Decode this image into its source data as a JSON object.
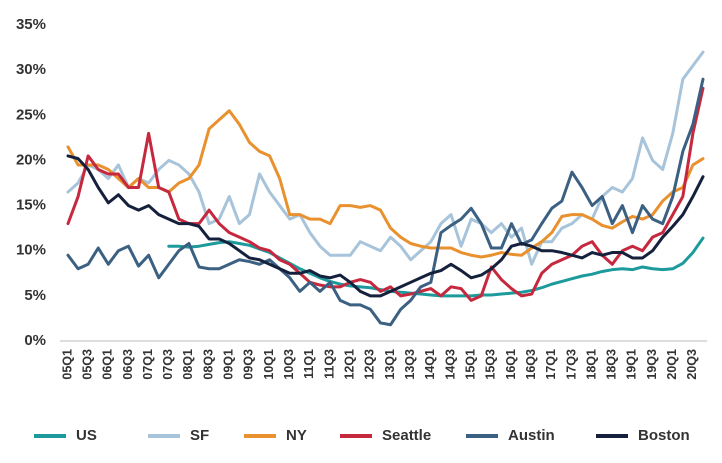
{
  "chart_data": {
    "type": "line",
    "categories": [
      "05Q1",
      null,
      "05Q3",
      null,
      "06Q1",
      null,
      "06Q3",
      null,
      "07Q1",
      null,
      "07Q3",
      null,
      "08Q1",
      null,
      "08Q3",
      null,
      "09Q1",
      null,
      "09Q3",
      null,
      "10Q1",
      null,
      "10Q3",
      null,
      "11Q1",
      null,
      "11Q3",
      null,
      "12Q1",
      null,
      "12Q3",
      null,
      "13Q1",
      null,
      "13Q3",
      null,
      "14Q1",
      null,
      "14Q3",
      null,
      "15Q1",
      null,
      "15Q3",
      null,
      "16Q1",
      null,
      "16Q3",
      null,
      "17Q1",
      null,
      "17Q3",
      null,
      "18Q1",
      null,
      "18Q3",
      null,
      "19Q1",
      null,
      "19Q3",
      null,
      "20Q1",
      null,
      "20Q3",
      null
    ],
    "ylim": [
      0,
      35
    ],
    "yticks": [
      {
        "value": 0,
        "label": "0%"
      },
      {
        "value": 5,
        "label": "5%"
      },
      {
        "value": 10,
        "label": "10%"
      },
      {
        "value": 15,
        "label": "15%"
      },
      {
        "value": 20,
        "label": "20%"
      },
      {
        "value": 25,
        "label": "25%"
      },
      {
        "value": 30,
        "label": "30%"
      },
      {
        "value": 35,
        "label": "35%"
      }
    ],
    "grid": false,
    "legend": "bottom",
    "series": [
      {
        "name": "US",
        "color": "#1c9a9c",
        "values": [
          null,
          null,
          null,
          null,
          null,
          null,
          null,
          null,
          null,
          null,
          10.5,
          10.5,
          10.4,
          10.5,
          10.7,
          10.9,
          11,
          10.8,
          10.6,
          10.2,
          9.8,
          9.2,
          8.6,
          8,
          7.5,
          7,
          6.6,
          6.3,
          6.1,
          6,
          5.9,
          5.7,
          5.5,
          5.4,
          5.3,
          5.2,
          5.1,
          5,
          5,
          5,
          5,
          5.1,
          5.1,
          5.2,
          5.3,
          5.4,
          5.6,
          5.9,
          6.3,
          6.6,
          6.9,
          7.2,
          7.4,
          7.7,
          7.9,
          8,
          7.9,
          8.2,
          8,
          7.9,
          8,
          8.6,
          9.8,
          11.4
        ]
      },
      {
        "name": "SF",
        "color": "#a8c4da",
        "values": [
          16.5,
          17.5,
          19.5,
          19,
          18,
          19.5,
          17,
          18,
          17.5,
          19,
          20,
          19.5,
          18.5,
          16.5,
          13,
          13.5,
          16,
          13,
          14,
          18.5,
          16.5,
          15,
          13.5,
          14,
          12,
          10.5,
          9.5,
          9.5,
          9.5,
          11,
          10.5,
          10,
          11.5,
          10.5,
          9,
          10,
          11,
          13,
          14,
          10.5,
          13.5,
          13,
          12,
          13,
          11.5,
          12.5,
          8.5,
          11,
          11,
          12.5,
          13,
          14,
          13.5,
          16,
          17,
          16.5,
          18,
          22.5,
          20,
          19,
          23,
          29,
          30.5,
          32
        ]
      },
      {
        "name": "NY",
        "color": "#e8912e",
        "values": [
          21.5,
          19.5,
          19.5,
          19.5,
          19,
          18,
          17,
          18,
          17,
          17,
          16.5,
          17.5,
          18,
          19.5,
          23.5,
          24.5,
          25.5,
          24,
          22,
          21,
          20.5,
          18,
          14,
          14,
          13.5,
          13.5,
          13,
          15,
          15,
          14.8,
          15,
          14.5,
          12.5,
          11.5,
          10.8,
          10.5,
          10.3,
          10.3,
          10.3,
          9.8,
          9.5,
          9.3,
          9.5,
          9.8,
          9.6,
          9.5,
          10.3,
          11,
          12,
          13.8,
          14,
          14,
          13.5,
          12.8,
          12.5,
          13.2,
          13.8,
          13.5,
          14,
          15.5,
          16.5,
          17,
          19.5,
          20.2
        ]
      },
      {
        "name": "Seattle",
        "color": "#c6283e",
        "values": [
          13,
          16,
          20.5,
          19,
          18.5,
          18.5,
          17,
          17,
          23,
          17,
          16.5,
          13.5,
          13,
          13,
          14.5,
          13,
          12,
          11.5,
          11,
          10.3,
          10,
          9,
          8.5,
          7.5,
          6.5,
          6.2,
          6,
          6,
          6.5,
          6.8,
          6.5,
          5.5,
          6,
          5,
          5.2,
          5.5,
          5.8,
          5,
          6,
          5.8,
          4.5,
          5,
          8.2,
          6.8,
          5.8,
          5,
          5.2,
          7.5,
          8.5,
          9,
          9.5,
          10.5,
          11,
          9.5,
          8.5,
          10,
          10.5,
          10,
          11.5,
          12,
          14,
          16,
          23,
          28
        ]
      },
      {
        "name": "Austin",
        "color": "#3b6082",
        "values": [
          9.5,
          8,
          8.5,
          10.3,
          8.5,
          10,
          10.5,
          8.3,
          9.5,
          7,
          8.5,
          10,
          10.8,
          8.2,
          8,
          8,
          8.5,
          9,
          8.8,
          8.5,
          9,
          8,
          7,
          5.5,
          6.5,
          5.5,
          6.5,
          4.5,
          4,
          4,
          3.5,
          2,
          1.8,
          3.5,
          4.5,
          6,
          6.5,
          12,
          12.8,
          13.5,
          14.7,
          13,
          10.3,
          10.3,
          13,
          10.7,
          11.2,
          13,
          14.7,
          15.5,
          18.7,
          17,
          15,
          16,
          13,
          15,
          12,
          15,
          13.5,
          13,
          16,
          21,
          24,
          29
        ]
      },
      {
        "name": "Boston",
        "color": "#15213c",
        "values": [
          20.5,
          20.2,
          19,
          17,
          15.3,
          16.2,
          15,
          14.5,
          15,
          14,
          13.5,
          13,
          13,
          12.7,
          11.3,
          11.3,
          10.8,
          10,
          9.2,
          9,
          8.5,
          8,
          7.5,
          7.5,
          7.8,
          7.2,
          7,
          7.3,
          6.5,
          5.5,
          5,
          5,
          5.5,
          6,
          6.5,
          7,
          7.5,
          7.8,
          8.5,
          7.8,
          7,
          7.3,
          8,
          9,
          10.5,
          10.8,
          10.5,
          10,
          10,
          9.8,
          9.5,
          9.2,
          9.8,
          9.5,
          9.8,
          9.8,
          9.2,
          9.2,
          10,
          11.5,
          12.7,
          14,
          16,
          18.2
        ]
      }
    ]
  }
}
